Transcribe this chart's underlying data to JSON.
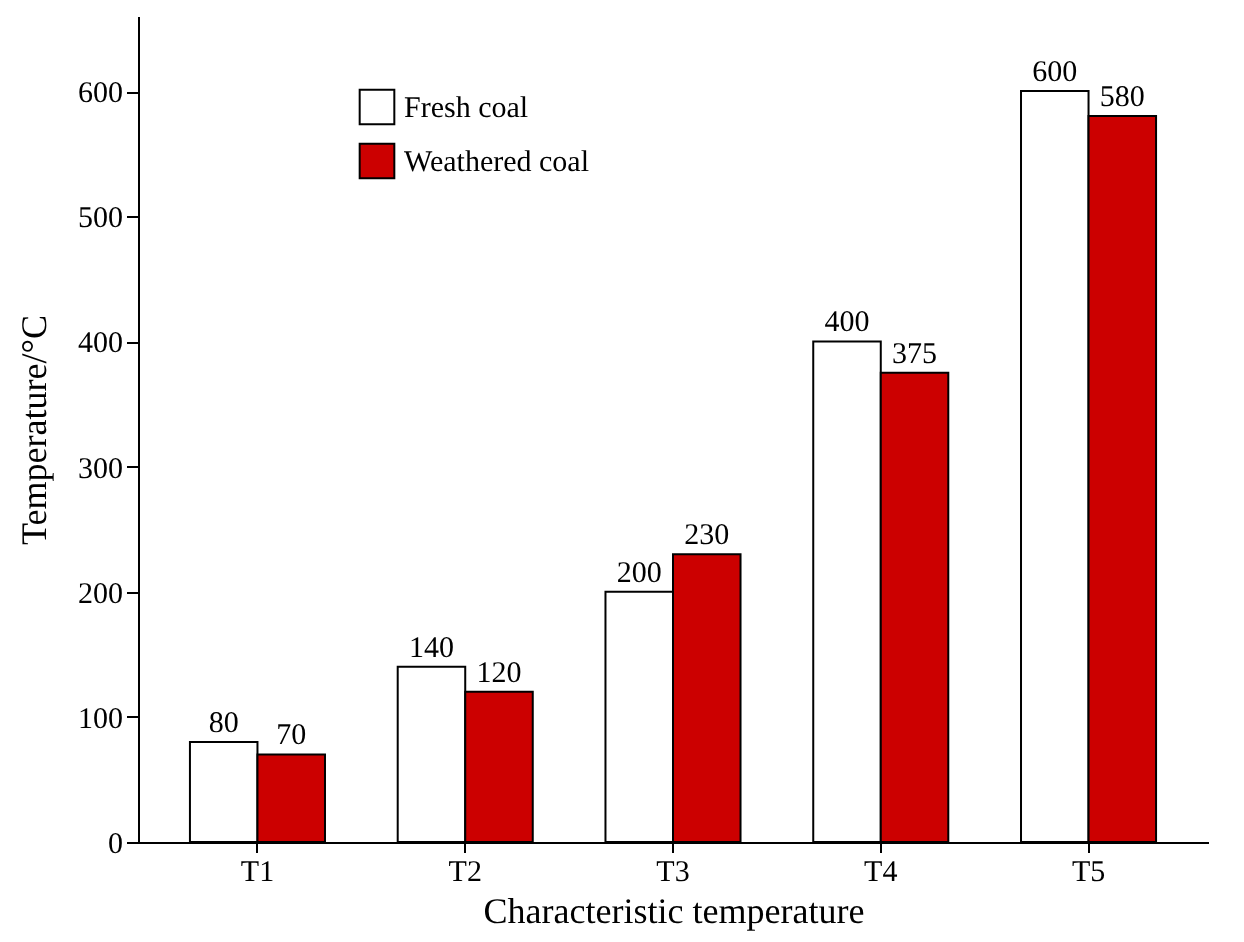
{
  "chart_data": {
    "type": "bar",
    "xlabel": "Characteristic temperature",
    "ylabel": "Temperature/°C",
    "categories": [
      "T1",
      "T2",
      "T3",
      "T4",
      "T5"
    ],
    "series": [
      {
        "name": "Fresh coal",
        "color": "#ffffff",
        "values": [
          80,
          140,
          200,
          400,
          600
        ]
      },
      {
        "name": "Weathered coal",
        "color": "#cc0000",
        "values": [
          70,
          120,
          230,
          375,
          580
        ]
      }
    ],
    "ylim": [
      0,
      660
    ],
    "yticks": [
      0,
      100,
      200,
      300,
      400,
      500,
      600
    ],
    "data_labels": true,
    "legend": "top left",
    "grid": false
  }
}
